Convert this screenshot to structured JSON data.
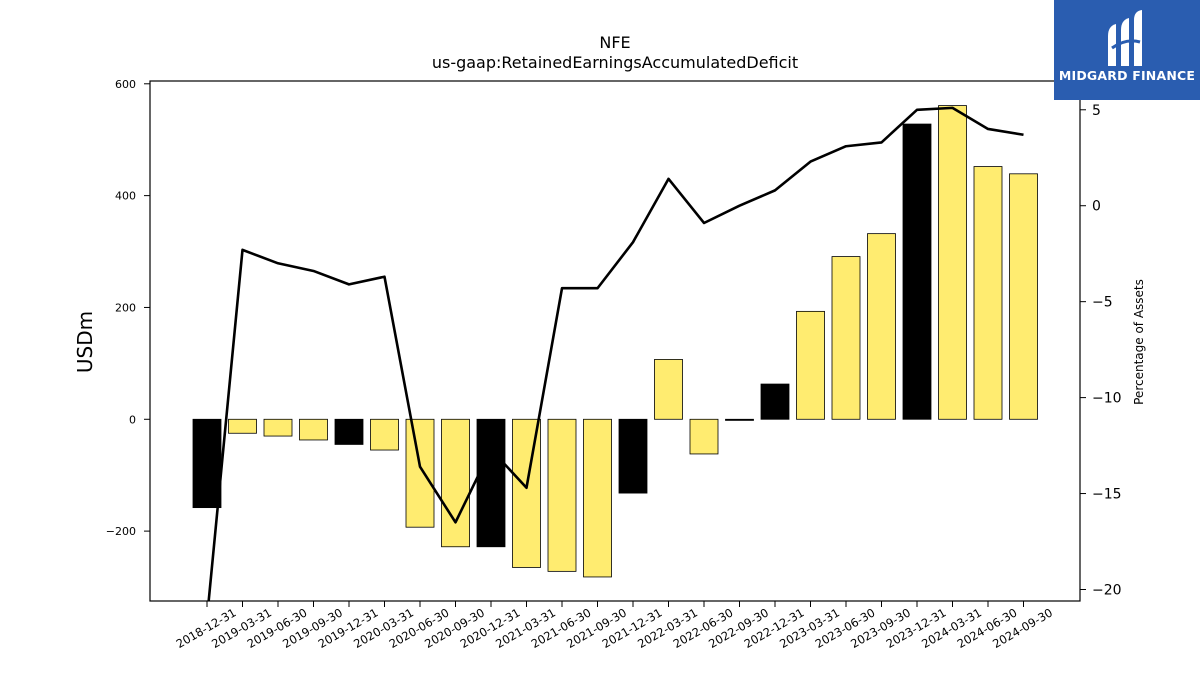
{
  "brand": {
    "name": "MIDGARD FINANCE",
    "bg_color": "#2a5db0"
  },
  "chart_data": {
    "type": "bar",
    "title": "NFE",
    "subtitle": "us-gaap:RetainedEarningsAccumulatedDeficit",
    "ylabel": "USDm",
    "y2label": "Percentage of Assets",
    "ylim": [
      -325,
      605
    ],
    "y2lim": [
      -20.6,
      6.5
    ],
    "yticks": [
      -200,
      0,
      200,
      400,
      600
    ],
    "y2ticks": [
      -20,
      -15,
      -10,
      -5,
      0,
      5
    ],
    "categories": [
      "2018-12-31",
      "2019-03-31",
      "2019-06-30",
      "2019-09-30",
      "2019-12-31",
      "2020-03-31",
      "2020-06-30",
      "2020-09-30",
      "2020-12-31",
      "2021-03-31",
      "2021-06-30",
      "2021-09-30",
      "2021-12-31",
      "2022-03-31",
      "2022-06-30",
      "2022-09-30",
      "2022-12-31",
      "2023-03-31",
      "2023-06-30",
      "2023-09-30",
      "2023-12-31",
      "2024-03-31",
      "2024-06-30",
      "2024-09-30"
    ],
    "series": [
      {
        "type": "bar",
        "axis": "left",
        "values": [
          -158,
          -25,
          -30,
          -37,
          -45,
          -55,
          -193,
          -228,
          -228,
          -265,
          -272,
          -282,
          -132,
          107,
          -62,
          -2,
          63,
          193,
          291,
          332,
          528,
          561,
          452,
          439
        ],
        "colors": [
          "#000000",
          "#ffec70",
          "#ffec70",
          "#ffec70",
          "#000000",
          "#ffec70",
          "#ffec70",
          "#ffec70",
          "#000000",
          "#ffec70",
          "#ffec70",
          "#ffec70",
          "#000000",
          "#ffec70",
          "#ffec70",
          "#000000",
          "#000000",
          "#ffec70",
          "#ffec70",
          "#ffec70",
          "#000000",
          "#ffec70",
          "#ffec70",
          "#ffec70"
        ]
      },
      {
        "type": "line",
        "axis": "right",
        "color": "#000000",
        "values": [
          -21.5,
          -2.3,
          -3.0,
          -3.4,
          -4.1,
          -3.7,
          -13.6,
          -16.5,
          -12.7,
          -14.7,
          -4.3,
          -4.3,
          -1.9,
          1.4,
          -0.9,
          0.0,
          0.8,
          2.3,
          3.1,
          3.3,
          5.0,
          5.1,
          4.0,
          3.7
        ]
      }
    ],
    "grid": false
  }
}
